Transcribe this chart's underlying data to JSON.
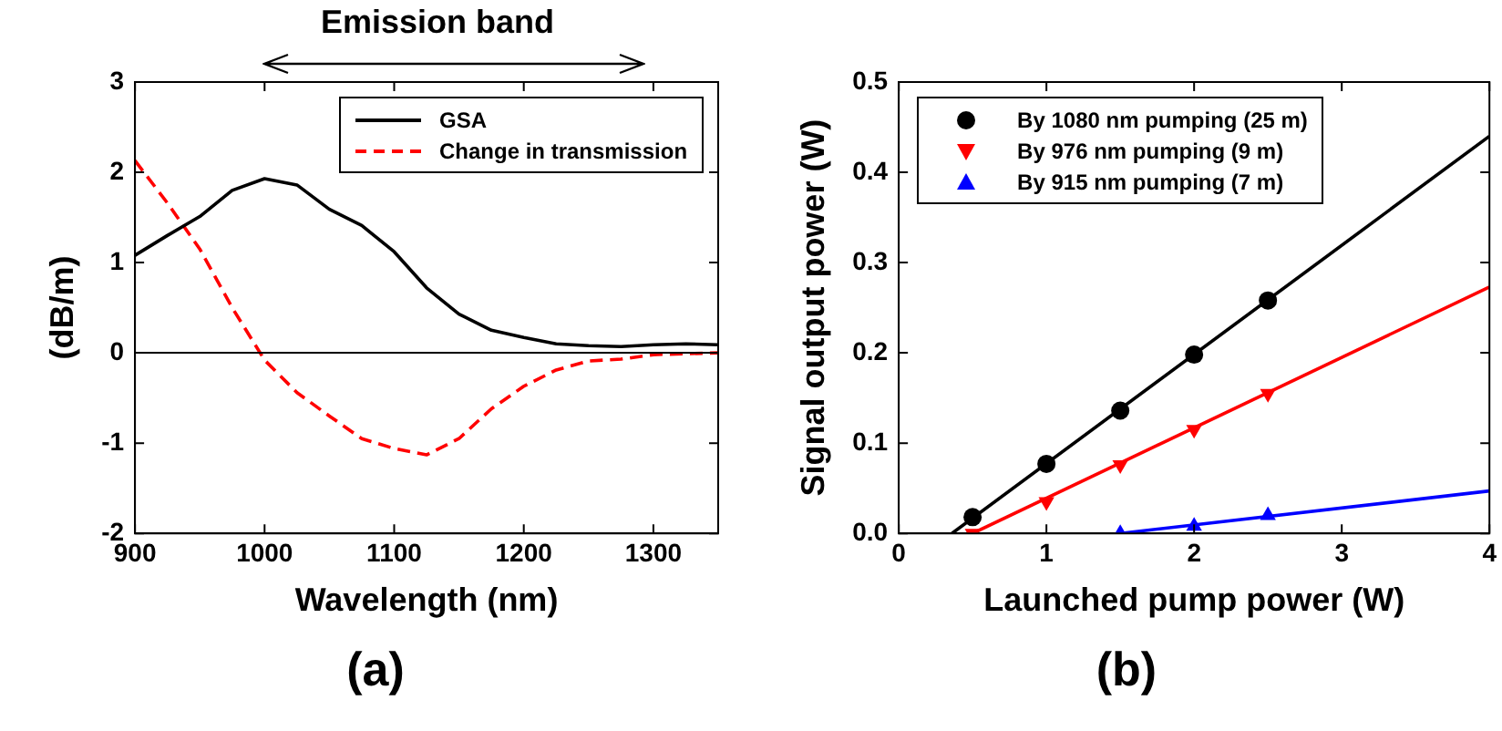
{
  "chart_data": [
    {
      "type": "line",
      "xlabel": "Wavelength (nm)",
      "ylabel": "(dB/m)",
      "annotations": [
        "Emission band",
        "(a)"
      ],
      "xlim": [
        900,
        1350
      ],
      "xticks": [
        900,
        1000,
        1100,
        1200,
        1300
      ],
      "ylim": [
        -2,
        3
      ],
      "yticks": [
        -2,
        -1,
        0,
        1,
        2,
        3
      ],
      "legend": "top right",
      "marker": "none",
      "ref_lines": [
        {
          "axis": "y",
          "value": 0,
          "color": "#000000"
        }
      ],
      "series": [
        {
          "name": "GSA",
          "color": "#000000",
          "line_style": "solid",
          "x": [
            900,
            925,
            950,
            975,
            1000,
            1025,
            1050,
            1075,
            1100,
            1125,
            1150,
            1175,
            1200,
            1225,
            1250,
            1275,
            1300,
            1325,
            1350
          ],
          "values": [
            1.08,
            1.3,
            1.51,
            1.8,
            1.93,
            1.86,
            1.59,
            1.41,
            1.12,
            0.72,
            0.43,
            0.25,
            0.17,
            0.1,
            0.08,
            0.07,
            0.09,
            0.1,
            0.09
          ]
        },
        {
          "name": "Change in transmission",
          "color": "#ff0000",
          "line_style": "dashed",
          "x": [
            900,
            925,
            950,
            975,
            1000,
            1025,
            1050,
            1075,
            1100,
            1125,
            1150,
            1175,
            1200,
            1225,
            1250,
            1275,
            1300,
            1325,
            1350
          ],
          "values": [
            2.13,
            1.66,
            1.15,
            0.5,
            -0.08,
            -0.44,
            -0.7,
            -0.95,
            -1.06,
            -1.13,
            -0.95,
            -0.62,
            -0.37,
            -0.19,
            -0.09,
            -0.07,
            -0.02,
            -0.01,
            0
          ]
        }
      ]
    },
    {
      "type": "scatter",
      "xlabel": "Launched pump power (W)",
      "ylabel": "Signal output power (W)",
      "annotations": [
        "(b)"
      ],
      "xlim": [
        0,
        4
      ],
      "xticks": [
        0,
        1,
        2,
        3,
        4
      ],
      "ylim": [
        0,
        0.5
      ],
      "yticks": [
        {
          "value": 0,
          "label": "0.0"
        },
        {
          "value": 0.1,
          "label": "0.1"
        },
        {
          "value": 0.2,
          "label": "0.2"
        },
        {
          "value": 0.3,
          "label": "0.3"
        },
        {
          "value": 0.4,
          "label": "0.4"
        },
        {
          "value": 0.5,
          "label": "0.5"
        }
      ],
      "legend": "top left",
      "series": [
        {
          "name": "By 1080 nm pumping (25 m)",
          "color": "#000000",
          "marker": "circle",
          "x": [
            0.5,
            1,
            1.5,
            2,
            2.5
          ],
          "values": [
            0.018,
            0.077,
            0.136,
            0.198,
            0.258
          ]
        },
        {
          "name": "By 976 nm pumping (9 m)",
          "color": "#ff0000",
          "marker": "triangle_down",
          "x": [
            0.5,
            1,
            1.5,
            2,
            2.5
          ],
          "values": [
            0,
            0.035,
            0.076,
            0.115,
            0.155
          ]
        },
        {
          "name": "By 915 nm pumping (7 m)",
          "color": "#0000ff",
          "marker": "triangle",
          "x": [
            1.5,
            2,
            2.5
          ],
          "values": [
            0,
            0.008,
            0.02
          ]
        },
        {
          "type": "line",
          "color": "#000000",
          "marker": "none",
          "x": [
            0.36,
            4
          ],
          "values": [
            0,
            0.44
          ]
        },
        {
          "type": "line",
          "color": "#ff0000",
          "marker": "none",
          "x": [
            0.5,
            4
          ],
          "values": [
            0,
            0.273
          ]
        },
        {
          "type": "line",
          "color": "#0000ff",
          "marker": "none",
          "x": [
            1.5,
            4
          ],
          "values": [
            0,
            0.047
          ]
        }
      ]
    }
  ]
}
